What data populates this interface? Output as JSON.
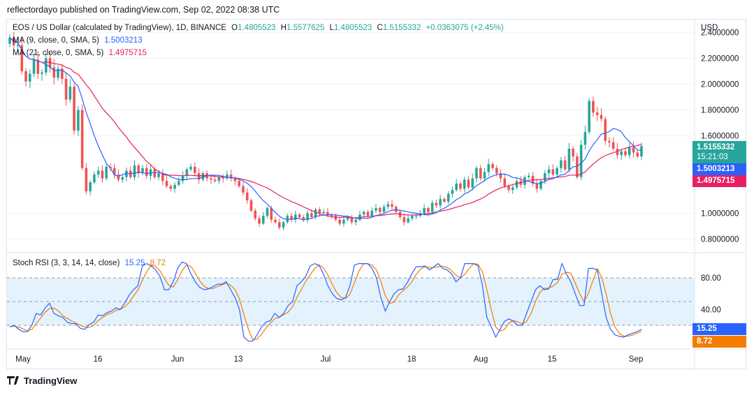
{
  "header": {
    "published": "reflectordayo published on TradingView.com, Sep 02, 2022 08:38 UTC"
  },
  "legend": {
    "symbol": "EOS / US Dollar (calculated by TradingView), 1D, BINANCE",
    "o_label": "O",
    "o": "1.4805523",
    "h_label": "H",
    "h": "1.5577625",
    "l_label": "L",
    "l": "1.4805523",
    "c_label": "C",
    "c": "1.5155332",
    "change": "+0.0363075 (+2.45%)",
    "ma9_label": "MA (9, close, 0, SMA, 5)",
    "ma9_value": "1.5003213",
    "ma21_label": "MA (21, close, 0, SMA, 5)",
    "ma21_value": "1.4975715",
    "stoch_label": "Stoch RSI (3, 3, 14, 14, close)",
    "stoch_k": "15.25",
    "stoch_d": "8.72"
  },
  "price_axis": {
    "currency": "USD",
    "ticks": [
      "2.4000000",
      "2.2000000",
      "2.0000000",
      "1.8000000",
      "1.6000000",
      "1.0000000",
      "0.8000000"
    ]
  },
  "price_boxes": {
    "last": "1.5155332",
    "countdown": "15:21:03",
    "ma9": "1.5003213",
    "ma21": "1.4975715"
  },
  "rsi_axis": {
    "ticks": [
      "80.00",
      "40.00"
    ],
    "k": "15.25",
    "d": "8.72"
  },
  "time_axis": [
    "May",
    "16",
    "Jun",
    "13",
    "Jul",
    "18",
    "Aug",
    "15",
    "Sep"
  ],
  "footer": {
    "brand": "TradingView"
  },
  "colors": {
    "up": "#26a69a",
    "down": "#ef5350",
    "ma9": "#2962ff",
    "ma21": "#e91e63",
    "k": "#2962ff",
    "d": "#f57c00",
    "band": "#e3f2fd"
  },
  "chart_data": [
    {
      "type": "candlestick",
      "title": "EOS / US Dollar (calculated by TradingView), 1D, BINANCE",
      "ylabel": "USD",
      "ylim": [
        0.7,
        2.5
      ],
      "x_labels": [
        "May",
        "16",
        "Jun",
        "13",
        "Jul",
        "18",
        "Aug",
        "15",
        "Sep"
      ],
      "closes": [
        2.36,
        2.3,
        2.3,
        2.1,
        2.02,
        2.08,
        2.19,
        2.08,
        2.09,
        2.2,
        2.13,
        2.05,
        2.12,
        2.04,
        1.88,
        1.98,
        1.64,
        1.8,
        1.35,
        1.17,
        1.24,
        1.3,
        1.33,
        1.27,
        1.36,
        1.35,
        1.3,
        1.26,
        1.28,
        1.33,
        1.28,
        1.37,
        1.31,
        1.35,
        1.29,
        1.34,
        1.28,
        1.31,
        1.25,
        1.21,
        1.19,
        1.22,
        1.25,
        1.29,
        1.34,
        1.36,
        1.31,
        1.26,
        1.31,
        1.27,
        1.26,
        1.25,
        1.28,
        1.27,
        1.3,
        1.27,
        1.25,
        1.21,
        1.16,
        1.1,
        1.02,
        0.96,
        0.92,
        0.98,
        1.04,
        0.95,
        0.93,
        0.89,
        0.93,
        0.98,
        0.95,
        0.99,
        0.97,
        0.95,
        1.0,
        0.97,
        1.03,
        1.0,
        1.01,
        0.99,
        0.98,
        0.95,
        0.92,
        0.95,
        0.97,
        0.93,
        0.95,
        0.99,
        1.01,
        0.98,
        1.02,
        1.04,
        1.01,
        1.05,
        1.07,
        1.05,
        1.01,
        0.97,
        0.93,
        0.96,
        0.98,
        0.98,
        1.0,
        1.04,
        1.01,
        1.08,
        1.06,
        1.11,
        1.09,
        1.15,
        1.18,
        1.23,
        1.19,
        1.26,
        1.2,
        1.27,
        1.35,
        1.27,
        1.32,
        1.38,
        1.35,
        1.31,
        1.27,
        1.21,
        1.18,
        1.2,
        1.25,
        1.22,
        1.28,
        1.29,
        1.23,
        1.19,
        1.25,
        1.31,
        1.34,
        1.3,
        1.35,
        1.41,
        1.34,
        1.5,
        1.44,
        1.28,
        1.53,
        1.63,
        1.87,
        1.78,
        1.76,
        1.73,
        1.56,
        1.55,
        1.5,
        1.45,
        1.48,
        1.45,
        1.51,
        1.47,
        1.44,
        1.52
      ],
      "series": [
        {
          "name": "MA (9, close, 0, SMA, 5)",
          "last": 1.5003213
        },
        {
          "name": "MA (21, close, 0, SMA, 5)",
          "last": 1.4975715
        }
      ]
    },
    {
      "type": "line",
      "title": "Stoch RSI (3, 3, 14, 14, close)",
      "ylim": [
        -10,
        110
      ],
      "bands": [
        20,
        50,
        80
      ],
      "series": [
        {
          "name": "K",
          "last": 15.25
        },
        {
          "name": "D",
          "last": 8.72
        }
      ],
      "k": [
        18,
        20,
        15,
        12,
        12,
        20,
        35,
        33,
        42,
        48,
        35,
        32,
        30,
        24,
        22,
        22,
        16,
        15,
        21,
        24,
        33,
        32,
        36,
        38,
        42,
        40,
        48,
        58,
        65,
        70,
        95,
        98,
        95,
        90,
        82,
        65,
        65,
        75,
        92,
        100,
        98,
        85,
        75,
        68,
        65,
        66,
        69,
        72,
        72,
        75,
        65,
        55,
        40,
        5,
        0,
        0,
        8,
        18,
        24,
        26,
        35,
        30,
        35,
        45,
        50,
        70,
        75,
        82,
        95,
        98,
        96,
        85,
        70,
        60,
        54,
        52,
        55,
        70,
        96,
        98,
        98,
        98,
        92,
        80,
        55,
        38,
        50,
        60,
        65,
        66,
        74,
        85,
        94,
        94,
        95,
        90,
        94,
        98,
        92,
        90,
        85,
        75,
        80,
        98,
        98,
        98,
        95,
        70,
        30,
        18,
        5,
        15,
        25,
        28,
        25,
        20,
        20,
        35,
        50,
        65,
        70,
        65,
        66,
        78,
        78,
        98,
        85,
        75,
        60,
        45,
        45,
        92,
        92,
        90,
        60,
        30,
        15,
        8,
        6,
        5,
        8,
        10,
        12,
        15
      ]
    }
  ]
}
